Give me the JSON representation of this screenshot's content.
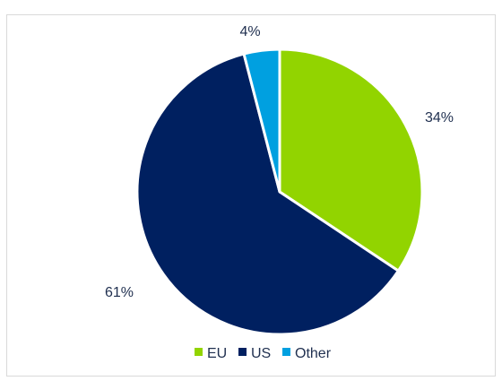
{
  "chart_data": {
    "type": "pie",
    "title": "",
    "categories": [
      "EU",
      "US",
      "Other"
    ],
    "values": [
      34,
      61,
      4
    ],
    "labels": [
      "34%",
      "61%",
      "4%"
    ],
    "colors": [
      "#92d400",
      "#002060",
      "#00a0e0"
    ],
    "slice_border_color": "#ffffff",
    "legend": {
      "position": "bottom",
      "entries": [
        "EU",
        "US",
        "Other"
      ]
    }
  }
}
